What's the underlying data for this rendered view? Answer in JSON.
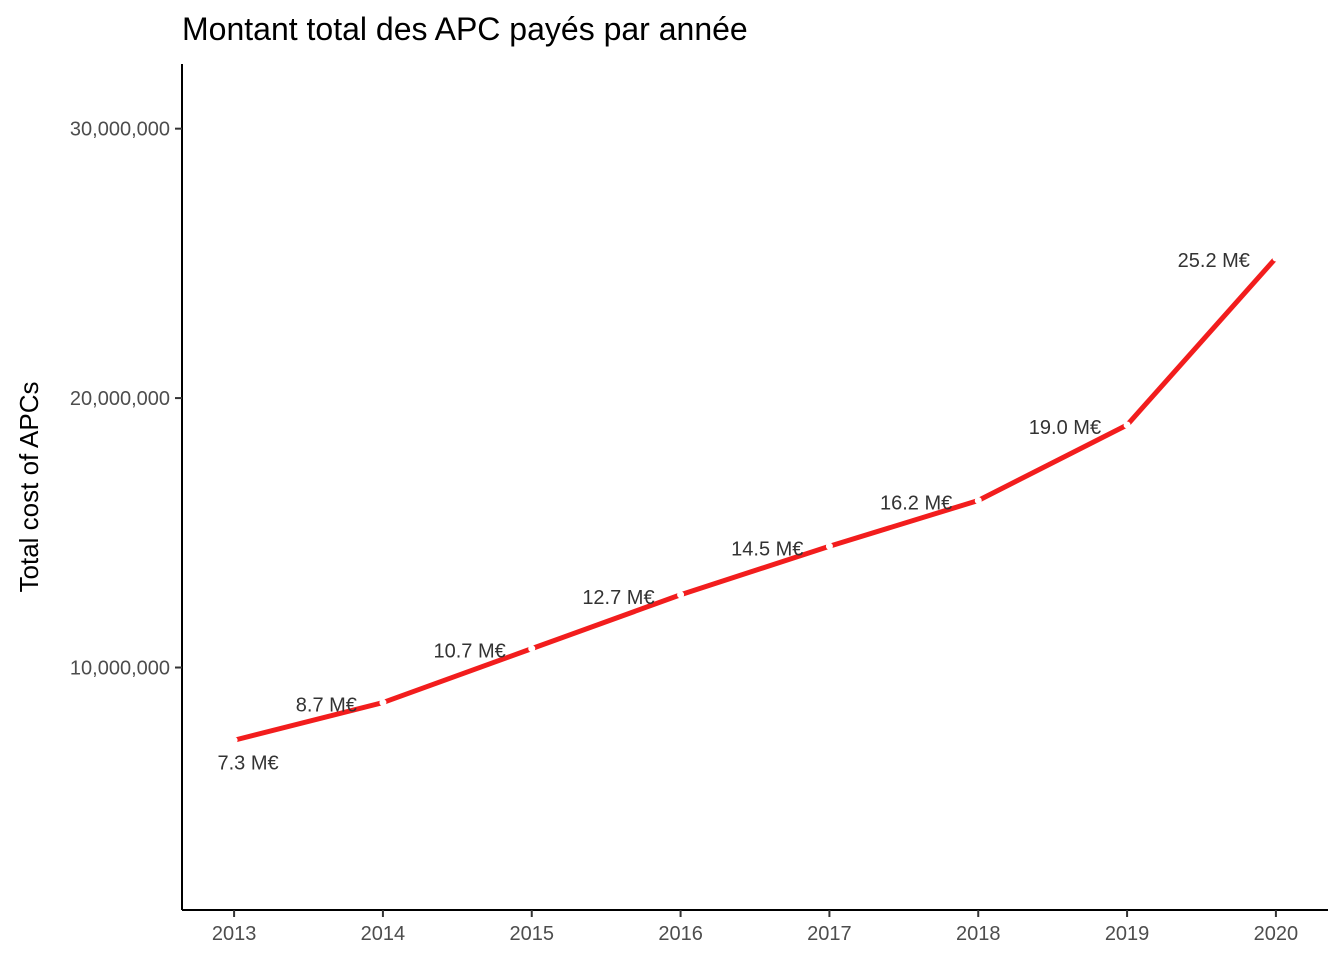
{
  "chart_data": {
    "type": "line",
    "title": "Montant total des APC payés par année",
    "xlabel": "",
    "ylabel": "Total cost of APCs",
    "x": [
      2013,
      2014,
      2015,
      2016,
      2017,
      2018,
      2019,
      2020
    ],
    "series": [
      {
        "values": [
          7300000,
          8700000,
          10700000,
          12700000,
          14500000,
          16200000,
          19000000,
          25200000
        ],
        "labels": [
          "7.3 M€",
          "8.7 M€",
          "10.7 M€",
          "12.7 M€",
          "14.5 M€",
          "16.2 M€",
          "19.0 M€",
          "25.2 M€"
        ],
        "color": "#f21d1d"
      }
    ],
    "xlim": [
      2012.65,
      2020.35
    ],
    "ylim": [
      1000000,
      32400000
    ],
    "yticks": [
      10000000,
      20000000,
      30000000
    ],
    "ytick_labels": [
      "10,000,000",
      "20,000,000",
      "30,000,000"
    ],
    "xtick_labels": [
      "2013",
      "2014",
      "2015",
      "2016",
      "2017",
      "2018",
      "2019",
      "2020"
    ],
    "grid": false,
    "legend": "none"
  }
}
